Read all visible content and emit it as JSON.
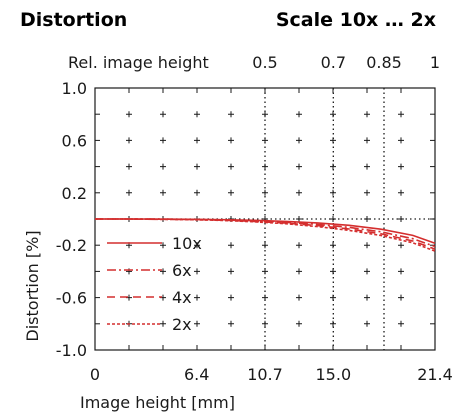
{
  "header": {
    "title": "Distortion",
    "scale_label": "Scale 10x … 2x"
  },
  "chart_data": {
    "type": "line",
    "title": "Distortion",
    "xlabel": "Image height [mm]",
    "ylabel": "Distortion [%]",
    "xlim": [
      0,
      21.4
    ],
    "ylim": [
      -1.0,
      1.0
    ],
    "x_ticks": [
      {
        "value": 0,
        "label": "0"
      },
      {
        "value": 6.4,
        "label": "6.4"
      },
      {
        "value": 10.7,
        "label": "10.7"
      },
      {
        "value": 15.0,
        "label": "15.0"
      },
      {
        "value": 21.4,
        "label": "21.4"
      }
    ],
    "y_ticks": [
      {
        "value": 1.0,
        "label": "1.0"
      },
      {
        "value": 0.6,
        "label": "0.6"
      },
      {
        "value": 0.2,
        "label": "0.2"
      },
      {
        "value": -0.2,
        "label": "-0.2"
      },
      {
        "value": -0.6,
        "label": "-0.6"
      },
      {
        "value": -1.0,
        "label": "-1.0"
      }
    ],
    "top_axis": {
      "label": "Rel. image height",
      "ticks": [
        {
          "value": 10.7,
          "label": "0.5"
        },
        {
          "value": 15.0,
          "label": "0.7"
        },
        {
          "value": 18.19,
          "label": "0.85"
        },
        {
          "value": 21.4,
          "label": "1"
        }
      ]
    },
    "reference_lines": {
      "vertical": [
        10.7,
        15.0,
        18.19
      ],
      "horizontal": [
        0.0
      ]
    },
    "grid": "crosses",
    "legend_position": "bottom-left",
    "line_color": "#d42e2e",
    "x": [
      0,
      2,
      4,
      6,
      8,
      10,
      12,
      14,
      16,
      18,
      20,
      21.4
    ],
    "series": [
      {
        "name": "10x",
        "style": "solid",
        "values": [
          0.0,
          0.0,
          -0.001,
          -0.002,
          -0.005,
          -0.01,
          -0.018,
          -0.03,
          -0.048,
          -0.078,
          -0.125,
          -0.185
        ]
      },
      {
        "name": "6x",
        "style": "dashdot",
        "values": [
          0.0,
          0.0,
          -0.001,
          -0.003,
          -0.007,
          -0.014,
          -0.025,
          -0.041,
          -0.064,
          -0.098,
          -0.15,
          -0.21
        ]
      },
      {
        "name": "4x",
        "style": "dashed",
        "values": [
          0.0,
          0.0,
          -0.002,
          -0.004,
          -0.009,
          -0.018,
          -0.031,
          -0.05,
          -0.076,
          -0.113,
          -0.168,
          -0.23
        ]
      },
      {
        "name": "2x",
        "style": "dotted",
        "values": [
          0.0,
          0.0,
          -0.002,
          -0.005,
          -0.011,
          -0.021,
          -0.036,
          -0.058,
          -0.087,
          -0.126,
          -0.182,
          -0.245
        ]
      }
    ]
  }
}
